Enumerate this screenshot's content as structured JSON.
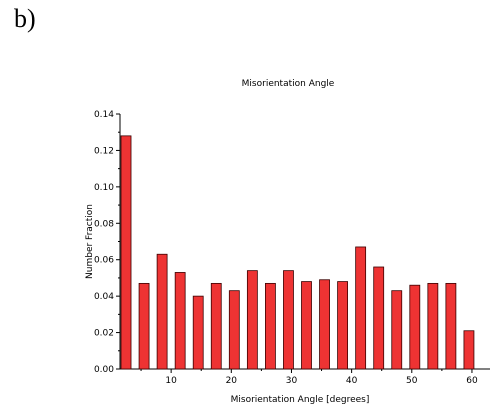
{
  "panel_label": "b)",
  "chart_data": {
    "type": "bar",
    "title": "Misorientation Angle",
    "xlabel": "Misorientation Angle [degrees]",
    "ylabel": "Number Fraction",
    "bar_color": "#ee3333",
    "x": [
      2.5,
      5.5,
      8.5,
      11.5,
      14.5,
      17.5,
      20.5,
      23.5,
      26.5,
      29.5,
      32.5,
      35.5,
      38.5,
      41.5,
      44.5,
      47.5,
      50.5,
      53.5,
      56.5,
      59.5
    ],
    "values": [
      0.128,
      0.047,
      0.063,
      0.053,
      0.04,
      0.047,
      0.043,
      0.054,
      0.047,
      0.054,
      0.048,
      0.049,
      0.048,
      0.067,
      0.056,
      0.043,
      0.046,
      0.047,
      0.047,
      0.021
    ],
    "xlim": [
      1.5,
      63
    ],
    "ylim": [
      0,
      0.14
    ],
    "xticks": [
      10,
      20,
      30,
      40,
      50,
      60
    ],
    "yticks": [
      0.0,
      0.02,
      0.04,
      0.06,
      0.08,
      0.1,
      0.12,
      0.14
    ],
    "xtick_labels": [
      "10",
      "20",
      "30",
      "40",
      "50",
      "60"
    ],
    "ytick_labels": [
      "0.00",
      "0.02",
      "0.04",
      "0.06",
      "0.08",
      "0.10",
      "0.12",
      "0.14"
    ],
    "grid": false
  }
}
